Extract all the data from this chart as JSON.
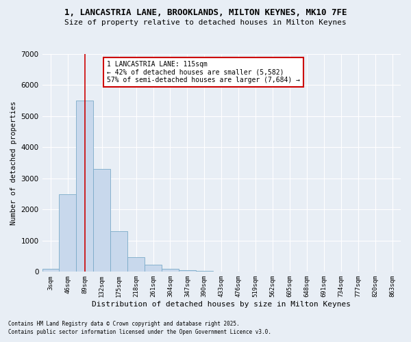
{
  "title_line1": "1, LANCASTRIA LANE, BROOKLANDS, MILTON KEYNES, MK10 7FE",
  "title_line2": "Size of property relative to detached houses in Milton Keynes",
  "xlabel": "Distribution of detached houses by size in Milton Keynes",
  "ylabel": "Number of detached properties",
  "bar_color": "#c8d8ec",
  "bar_edge_color": "#7aaac8",
  "bg_color": "#e8eef5",
  "grid_color": "#ffffff",
  "categories": [
    "3sqm",
    "46sqm",
    "89sqm",
    "132sqm",
    "175sqm",
    "218sqm",
    "261sqm",
    "304sqm",
    "347sqm",
    "390sqm",
    "433sqm",
    "476sqm",
    "519sqm",
    "562sqm",
    "605sqm",
    "648sqm",
    "691sqm",
    "734sqm",
    "777sqm",
    "820sqm",
    "863sqm"
  ],
  "values": [
    100,
    2500,
    5500,
    3300,
    1300,
    480,
    220,
    90,
    55,
    30,
    0,
    0,
    0,
    0,
    0,
    0,
    0,
    0,
    0,
    0,
    0
  ],
  "ylim": [
    0,
    7000
  ],
  "yticks": [
    0,
    1000,
    2000,
    3000,
    4000,
    5000,
    6000,
    7000
  ],
  "vline_x": 2,
  "annotation_title": "1 LANCASTRIA LANE: 115sqm",
  "annotation_line1": "← 42% of detached houses are smaller (5,582)",
  "annotation_line2": "57% of semi-detached houses are larger (7,684) →",
  "annotation_box_color": "#ffffff",
  "annotation_box_edge": "#cc0000",
  "vline_color": "#cc0000",
  "footnote_line1": "Contains HM Land Registry data © Crown copyright and database right 2025.",
  "footnote_line2": "Contains public sector information licensed under the Open Government Licence v3.0."
}
